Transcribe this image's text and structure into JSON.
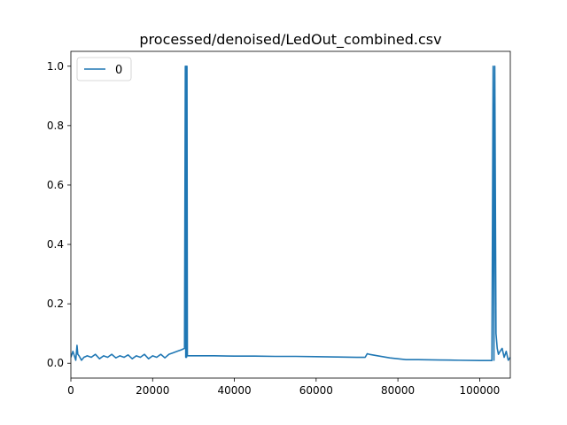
{
  "chart_data": {
    "type": "line",
    "title": "processed/denoised/LedOut_combined.csv",
    "xlabel": "",
    "ylabel": "",
    "xlim": [
      0,
      107500
    ],
    "ylim": [
      -0.05,
      1.05
    ],
    "xticks": [
      0,
      20000,
      40000,
      60000,
      80000,
      100000
    ],
    "xtick_labels": [
      "0",
      "20000",
      "40000",
      "60000",
      "80000",
      "100000"
    ],
    "yticks": [
      0.0,
      0.2,
      0.4,
      0.6,
      0.8,
      1.0
    ],
    "ytick_labels": [
      "0.0",
      "0.2",
      "0.4",
      "0.6",
      "0.8",
      "1.0"
    ],
    "grid": false,
    "legend": {
      "position": "top-left",
      "entries": [
        "0"
      ]
    },
    "series": [
      {
        "name": "0",
        "color": "#1f77b4",
        "x": [
          0,
          500,
          1200,
          1500,
          1700,
          2000,
          2600,
          3200,
          4000,
          5000,
          6000,
          7000,
          8000,
          9000,
          10000,
          11000,
          12000,
          13000,
          14000,
          15000,
          16000,
          17000,
          18000,
          19000,
          20000,
          21000,
          22000,
          23000,
          24000,
          25000,
          26000,
          27000,
          27800,
          28000,
          28100,
          28200,
          28300,
          28400,
          28500,
          29000,
          30000,
          35000,
          40000,
          45000,
          50000,
          55000,
          60000,
          65000,
          70000,
          72000,
          72500,
          73000,
          75000,
          78000,
          80000,
          82000,
          85000,
          90000,
          95000,
          100000,
          103000,
          103300,
          103500,
          103700,
          104000,
          104300,
          104600,
          105000,
          105500,
          106000,
          106500,
          107000,
          107500
        ],
        "y": [
          0.02,
          0.04,
          0.01,
          0.06,
          0.03,
          0.025,
          0.01,
          0.02,
          0.025,
          0.02,
          0.03,
          0.015,
          0.025,
          0.02,
          0.03,
          0.018,
          0.025,
          0.02,
          0.028,
          0.015,
          0.025,
          0.02,
          0.03,
          0.015,
          0.025,
          0.02,
          0.03,
          0.018,
          0.03,
          0.035,
          0.04,
          0.045,
          0.05,
          1.0,
          0.02,
          1.0,
          0.02,
          1.0,
          0.025,
          0.025,
          0.025,
          0.025,
          0.024,
          0.024,
          0.023,
          0.023,
          0.022,
          0.021,
          0.02,
          0.02,
          0.032,
          0.03,
          0.025,
          0.018,
          0.015,
          0.012,
          0.012,
          0.011,
          0.01,
          0.009,
          0.009,
          1.0,
          0.01,
          1.0,
          0.1,
          0.05,
          0.03,
          0.04,
          0.05,
          0.02,
          0.04,
          0.01,
          0.02
        ]
      }
    ]
  }
}
